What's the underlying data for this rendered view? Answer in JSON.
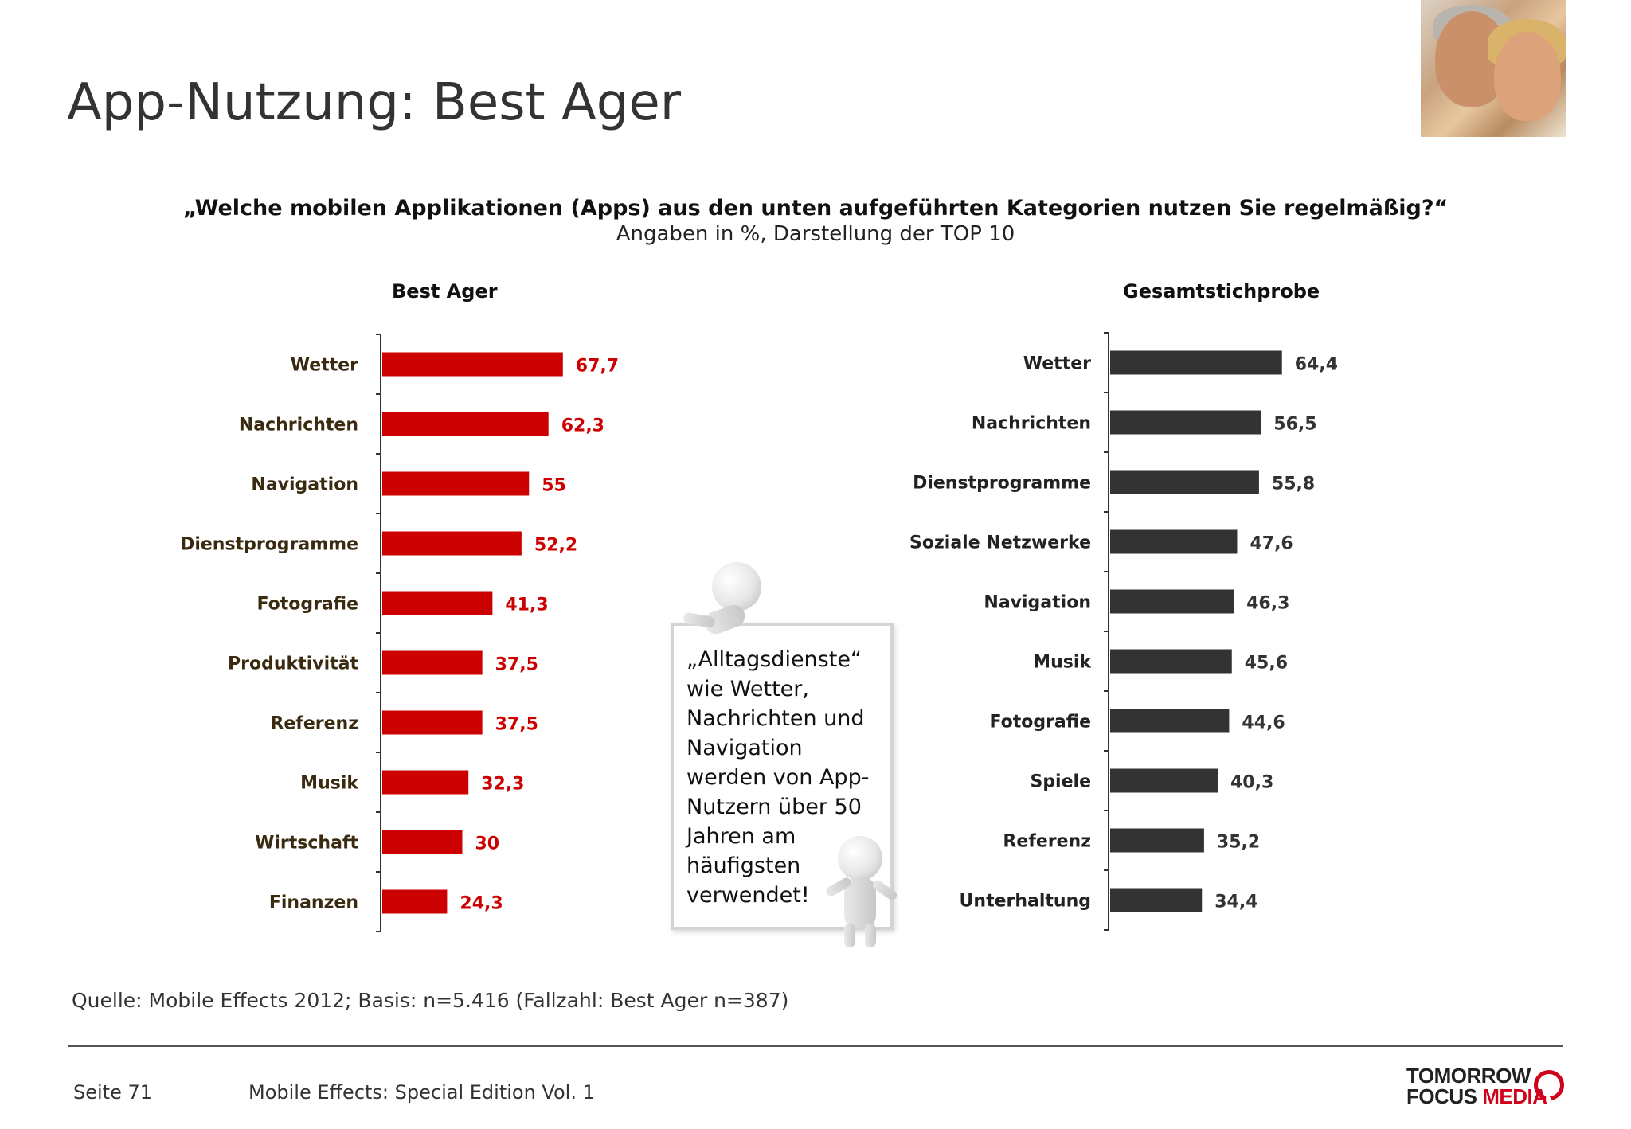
{
  "title": "App-Nutzung: Best Ager",
  "question": "„Welche mobilen Applikationen (Apps) aus den unten aufgeführten Kategorien nutzen Sie regelmäßig?“",
  "subtitle": "Angaben in %, Darstellung der TOP 10",
  "note": "„Alltagsdienste“ wie Wetter, Nachrichten und Navigation werden von App-Nutzern über 50 Jahren am häufigsten verwendet!",
  "source": "Quelle: Mobile Effects 2012; Basis: n=5.416 (Fallzahl: Best Ager n=387)",
  "footer": {
    "page": "Seite 71",
    "doc": "Mobile Effects: Special Edition Vol. 1"
  },
  "logo": {
    "line1": "TOMORROW",
    "line2a": "FOCUS ",
    "line2b": "MEDIA"
  },
  "colors": {
    "best_ager": "#cc0000",
    "total": "#333333",
    "label_left": "#3a2a10"
  },
  "chart_data": [
    {
      "type": "bar",
      "orientation": "horizontal",
      "title": "Best Ager",
      "categories": [
        "Wetter",
        "Nachrichten",
        "Navigation",
        "Dienstprogramme",
        "Fotografie",
        "Produktivität",
        "Referenz",
        "Musik",
        "Wirtschaft",
        "Finanzen"
      ],
      "values": [
        67.7,
        62.3,
        55,
        52.2,
        41.3,
        37.5,
        37.5,
        32.3,
        30,
        24.3
      ],
      "value_labels": [
        "67,7",
        "62,3",
        "55",
        "52,2",
        "41,3",
        "37,5",
        "37,5",
        "32,3",
        "30",
        "24,3"
      ],
      "color": "#cc0000"
    },
    {
      "type": "bar",
      "orientation": "horizontal",
      "title": "Gesamtstichprobe",
      "categories": [
        "Wetter",
        "Nachrichten",
        "Dienstprogramme",
        "Soziale Netzwerke",
        "Navigation",
        "Musik",
        "Fotografie",
        "Spiele",
        "Referenz",
        "Unterhaltung"
      ],
      "values": [
        64.4,
        56.5,
        55.8,
        47.6,
        46.3,
        45.6,
        44.6,
        40.3,
        35.2,
        34.4
      ],
      "value_labels": [
        "64,4",
        "56,5",
        "55,8",
        "47,6",
        "46,3",
        "45,6",
        "44,6",
        "40,3",
        "35,2",
        "34,4"
      ],
      "color": "#333333"
    }
  ]
}
